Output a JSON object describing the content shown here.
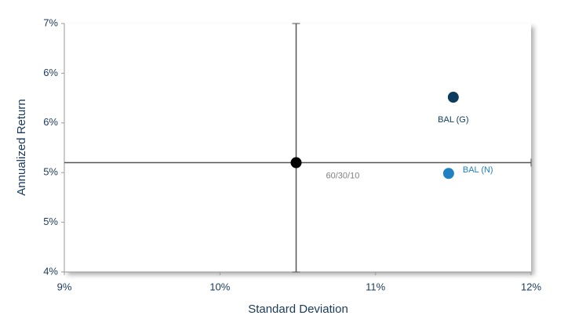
{
  "chart_data": {
    "type": "scatter",
    "xlabel": "Standard Deviation",
    "ylabel": "Annualized Return",
    "xlim": [
      9,
      12
    ],
    "xticks": [
      {
        "value": 9,
        "label": "9%"
      },
      {
        "value": 10,
        "label": "10%"
      },
      {
        "value": 11,
        "label": "11%"
      },
      {
        "value": 12,
        "label": "12%"
      }
    ],
    "ylim": [
      4,
      7
    ],
    "yticks": [
      {
        "value": 4,
        "label": "4%"
      },
      {
        "value": 4.6,
        "label": "5%"
      },
      {
        "value": 5.2,
        "label": "5%"
      },
      {
        "value": 5.8,
        "label": "6%"
      },
      {
        "value": 6.4,
        "label": "6%"
      },
      {
        "value": 7,
        "label": "7%"
      }
    ],
    "crosshair": true,
    "series": [
      {
        "name": "60/30/10",
        "color": "#000000",
        "label_color": "#7f7f7f",
        "x": [
          10.49
        ],
        "values": [
          5.32
        ]
      },
      {
        "name": "BAL (G)",
        "color": "#0b3c5d",
        "label_color": "#0b3c5d",
        "x": [
          11.5
        ],
        "values": [
          6.11
        ]
      },
      {
        "name": "BAL (N)",
        "color": "#1f80c2",
        "label_color": "#1f80c2",
        "x": [
          11.47
        ],
        "values": [
          5.19
        ]
      }
    ]
  }
}
